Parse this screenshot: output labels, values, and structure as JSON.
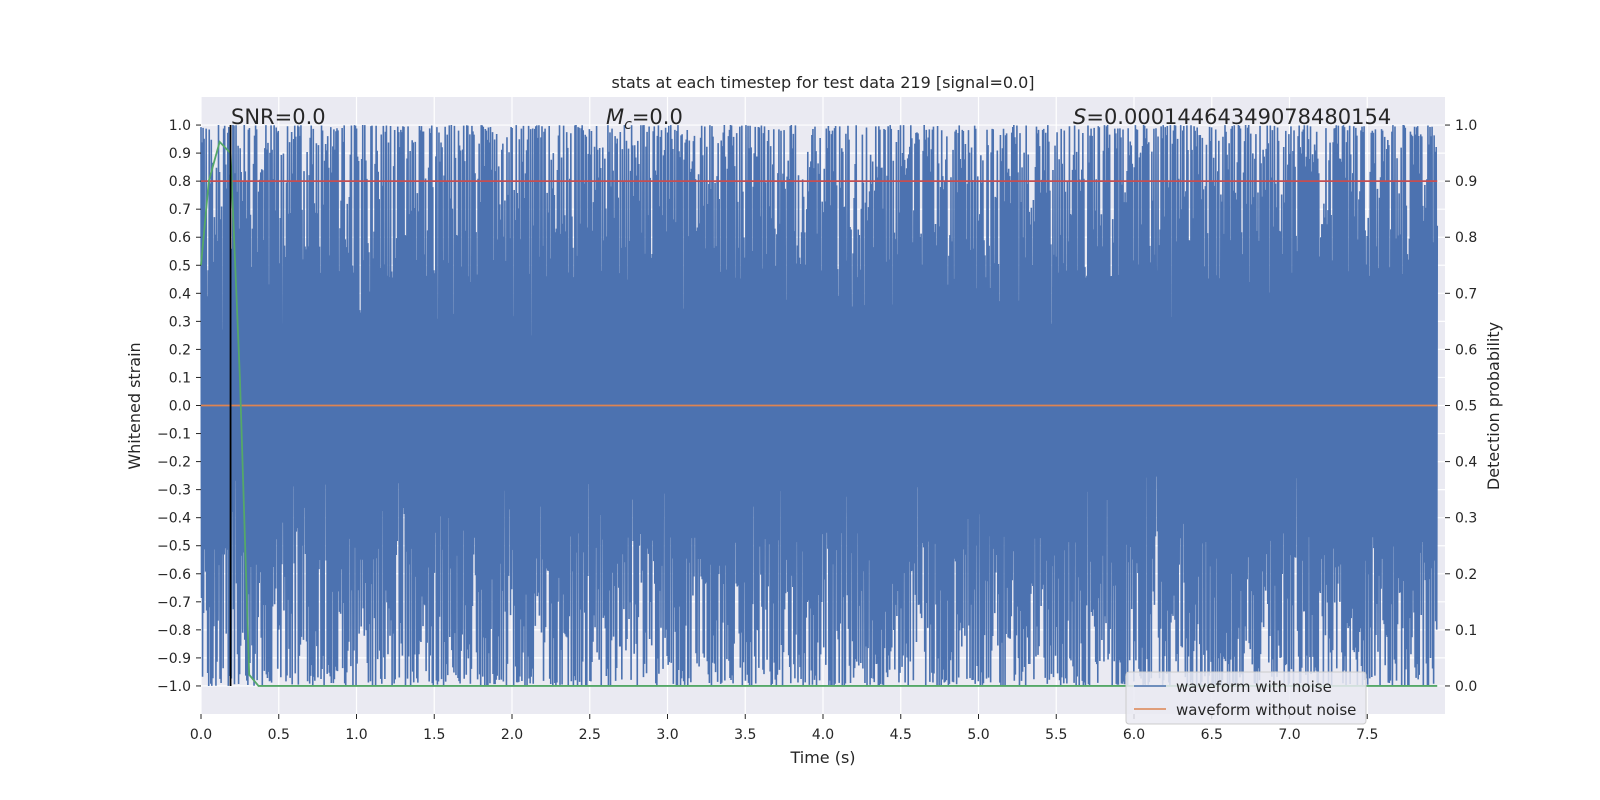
{
  "chart_data": {
    "type": "line",
    "title": "stats at each timestep for test data 219 [signal=0.0]",
    "xlabel": "Time (s)",
    "ylabel": "Whitened strain",
    "y2label": "Detection probability",
    "xlim": [
      0.0,
      8.0
    ],
    "ylim": [
      -1.1,
      1.1
    ],
    "y2lim": [
      -0.05,
      1.05
    ],
    "xticks": [
      "0.0",
      "0.5",
      "1.0",
      "1.5",
      "2.0",
      "2.5",
      "3.0",
      "3.5",
      "4.0",
      "4.5",
      "5.0",
      "5.5",
      "6.0",
      "6.5",
      "7.0",
      "7.5"
    ],
    "yticks": [
      "1.0",
      "0.9",
      "0.8",
      "0.7",
      "0.6",
      "0.5",
      "0.4",
      "0.3",
      "0.2",
      "0.1",
      "0.0",
      "−0.1",
      "−0.2",
      "−0.3",
      "−0.4",
      "−0.5",
      "−0.6",
      "−0.7",
      "−0.8",
      "−0.9",
      "−1.0"
    ],
    "y2ticks": [
      "1.0",
      "0.9",
      "0.8",
      "0.7",
      "0.6",
      "0.5",
      "0.4",
      "0.3",
      "0.2",
      "0.1",
      "0.0"
    ],
    "annotations": {
      "snr_prefix": "SNR",
      "snr_value": "=0.0",
      "mc_symbol": "M",
      "mc_sub": "c",
      "mc_value": "=0.0",
      "s_symbol": "S",
      "s_value": "=0.00014464349078480154"
    },
    "marker_line_x": 0.19,
    "series": [
      {
        "name": "waveform with noise",
        "color": "#4c72b0",
        "description": "whitened noise filling nearly the full range",
        "envelope": [
          -1.0,
          1.0
        ]
      },
      {
        "name": "waveform without noise",
        "color": "#dd8452",
        "value": 0.0
      }
    ],
    "threshold_line": {
      "y": 0.8,
      "color": "#c44e52"
    },
    "detection_probability": {
      "color": "#55a868",
      "x": [
        0.0,
        0.05,
        0.12,
        0.19,
        0.25,
        0.31,
        0.37,
        8.0
      ],
      "y": [
        0.75,
        0.9,
        0.97,
        0.95,
        0.55,
        0.02,
        0.0,
        0.0
      ]
    },
    "legend": {
      "placement": "lower-right",
      "entries": [
        "waveform with noise",
        "waveform without noise"
      ]
    },
    "grid": true,
    "background": "#eaeaf2"
  }
}
